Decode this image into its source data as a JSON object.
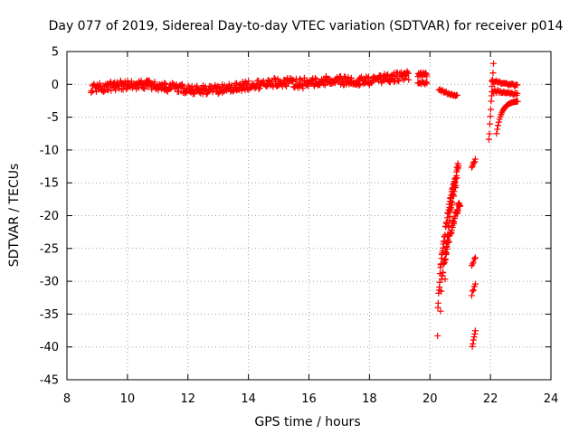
{
  "chart_data": {
    "type": "scatter",
    "title": "Day 077 of 2019, Sidereal Day-to-day VTEC variation (SDTVAR) for receiver p014",
    "xlabel": "GPS time / hours",
    "ylabel": "SDTVAR / TECUs",
    "xlim": [
      8,
      24
    ],
    "ylim": [
      -45,
      5
    ],
    "xticks": [
      "8",
      "10",
      "12",
      "14",
      "16",
      "18",
      "20",
      "22",
      "24"
    ],
    "yticks": [
      "5",
      "0",
      "-5",
      "-10",
      "-15",
      "-20",
      "-25",
      "-30",
      "-35",
      "-40",
      "-45"
    ],
    "grid": true,
    "marker": "+",
    "color": "#ff0000",
    "series": [
      {
        "name": "p014",
        "segments": [
          {
            "x0": 8.8,
            "x1": 19.3,
            "step": 0.04,
            "kind": "band"
          },
          {
            "x0": 19.6,
            "x1": 19.9,
            "step": 0.02,
            "kind": "flat",
            "y": 1.5,
            "spread": 0.6
          },
          {
            "x0": 19.6,
            "x1": 19.9,
            "step": 0.03,
            "kind": "flat",
            "y": 0.2,
            "spread": 0.4
          },
          {
            "x0": 20.3,
            "x1": 20.9,
            "step": 0.03,
            "kind": "ramp",
            "ya": -0.8,
            "yb": -1.8
          },
          {
            "x0": 20.25,
            "x1": 20.95,
            "step": 0.012,
            "kind": "drop",
            "ya": -38,
            "yb": -12
          },
          {
            "x0": 20.35,
            "x1": 21.0,
            "step": 0.012,
            "kind": "drop",
            "ya": -34,
            "yb": -18
          },
          {
            "x0": 20.5,
            "x1": 20.9,
            "step": 0.015,
            "kind": "drop",
            "ya": -30,
            "yb": -14
          },
          {
            "x0": 21.38,
            "x1": 21.5,
            "step": 0.02,
            "kind": "ramp",
            "ya": -12.5,
            "yb": -11.5
          },
          {
            "x0": 21.38,
            "x1": 21.5,
            "step": 0.03,
            "kind": "ramp",
            "ya": -27.5,
            "yb": -26.5
          },
          {
            "x0": 21.38,
            "x1": 21.5,
            "step": 0.03,
            "kind": "ramp",
            "ya": -32,
            "yb": -30.5
          },
          {
            "x0": 21.4,
            "x1": 21.5,
            "step": 0.02,
            "kind": "ramp",
            "ya": -40,
            "yb": -37.5
          },
          {
            "x0": 21.95,
            "x1": 22.1,
            "step": 0.015,
            "kind": "ramp",
            "ya": -8.5,
            "yb": 3
          },
          {
            "x0": 22.05,
            "x1": 22.9,
            "step": 0.03,
            "kind": "ramp",
            "ya": 0.5,
            "yb": -0.2
          },
          {
            "x0": 22.05,
            "x1": 22.9,
            "step": 0.03,
            "kind": "ramp",
            "ya": -1.0,
            "yb": -1.5
          },
          {
            "x0": 22.2,
            "x1": 22.9,
            "step": 0.025,
            "kind": "curve",
            "ya": -7.5,
            "yb": -2.5
          }
        ]
      }
    ]
  }
}
